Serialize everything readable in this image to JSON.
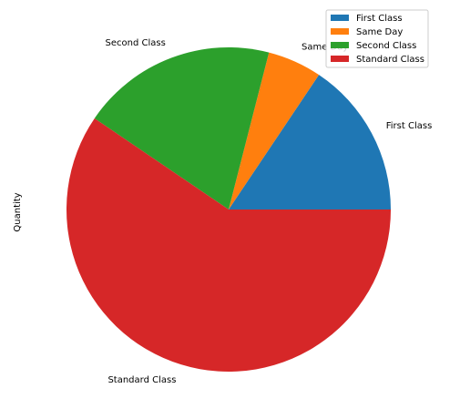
{
  "chart_data": {
    "type": "pie",
    "title": "",
    "ylabel": "Quantity",
    "categories": [
      "First Class",
      "Same Day",
      "Second Class",
      "Standard Class"
    ],
    "values": [
      15.6,
      5.4,
      19.5,
      59.5
    ],
    "colors": [
      "#1f77b4",
      "#ff7f0e",
      "#2ca02c",
      "#d62728"
    ],
    "start_angle_deg": 0,
    "direction": "counterclockwise",
    "legend": {
      "placement": "top-right",
      "entries": [
        "First Class",
        "Same Day",
        "Second Class",
        "Standard Class"
      ]
    }
  }
}
